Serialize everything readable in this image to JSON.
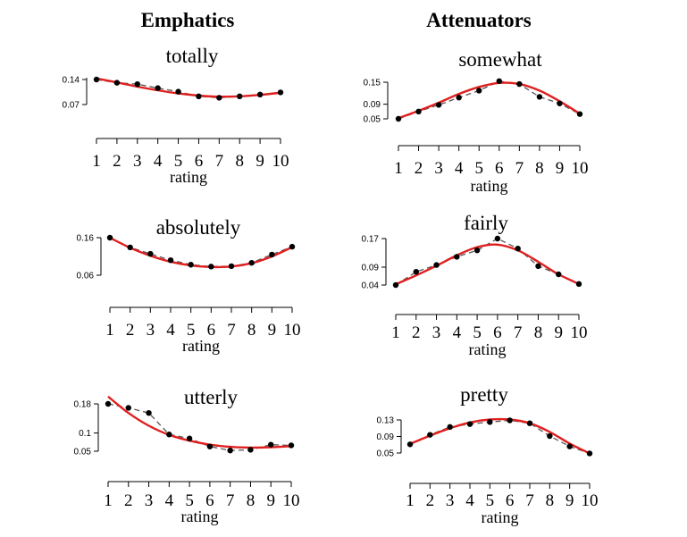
{
  "columns": [
    "Emphatics",
    "Attenuators"
  ],
  "chart_data": [
    {
      "type": "line",
      "title": "totally",
      "xlabel": "rating",
      "x": [
        1,
        2,
        3,
        4,
        5,
        6,
        7,
        8,
        9,
        10
      ],
      "yticks": [
        0.14,
        0.07
      ],
      "ylim": [
        0.07,
        0.145
      ],
      "series": [
        {
          "observed": [
            0.14,
            0.131,
            0.127,
            0.116,
            0.106,
            0.093,
            0.089,
            0.093,
            0.098,
            0.104
          ],
          "fitted": [
            0.143,
            0.132,
            0.12,
            0.11,
            0.101,
            0.095,
            0.092,
            0.093,
            0.097,
            0.103
          ]
        }
      ],
      "style": {
        "observed_color": "#555555",
        "fitted_color": "#e01f1f",
        "marker_color": "#000000"
      }
    },
    {
      "type": "line",
      "title": "absolutely",
      "xlabel": "rating",
      "x": [
        1,
        2,
        3,
        4,
        5,
        6,
        7,
        8,
        9,
        10
      ],
      "yticks": [
        0.16,
        0.06
      ],
      "ylim": [
        0.06,
        0.16
      ],
      "series": [
        {
          "observed": [
            0.16,
            0.134,
            0.117,
            0.1,
            0.088,
            0.083,
            0.084,
            0.093,
            0.115,
            0.136
          ],
          "fitted": [
            0.16,
            0.133,
            0.112,
            0.096,
            0.086,
            0.082,
            0.083,
            0.092,
            0.11,
            0.135
          ]
        }
      ],
      "style": {
        "observed_color": "#555555",
        "fitted_color": "#e01f1f",
        "marker_color": "#000000"
      }
    },
    {
      "type": "line",
      "title": "utterly",
      "xlabel": "rating",
      "x": [
        1,
        2,
        3,
        4,
        5,
        6,
        7,
        8,
        9,
        10
      ],
      "yticks": [
        0.18,
        0.1,
        0.05
      ],
      "ylim": [
        0.05,
        0.18
      ],
      "series": [
        {
          "observed": [
            0.18,
            0.169,
            0.155,
            0.096,
            0.085,
            0.063,
            0.052,
            0.054,
            0.068,
            0.066
          ],
          "fitted": [
            0.2,
            0.155,
            0.12,
            0.095,
            0.079,
            0.068,
            0.062,
            0.06,
            0.061,
            0.064
          ]
        }
      ],
      "style": {
        "observed_color": "#555555",
        "fitted_color": "#e01f1f",
        "marker_color": "#000000"
      }
    },
    {
      "type": "line",
      "title": "somewhat",
      "xlabel": "rating",
      "x": [
        1,
        2,
        3,
        4,
        5,
        6,
        7,
        8,
        9,
        10
      ],
      "yticks": [
        0.15,
        0.09,
        0.05
      ],
      "ylim": [
        0.05,
        0.15
      ],
      "series": [
        {
          "observed": [
            0.05,
            0.07,
            0.088,
            0.108,
            0.127,
            0.153,
            0.145,
            0.11,
            0.092,
            0.063
          ],
          "fitted": [
            0.052,
            0.072,
            0.094,
            0.118,
            0.137,
            0.148,
            0.145,
            0.127,
            0.098,
            0.064
          ]
        }
      ],
      "style": {
        "observed_color": "#555555",
        "fitted_color": "#e01f1f",
        "marker_color": "#000000"
      }
    },
    {
      "type": "line",
      "title": "fairly",
      "xlabel": "rating",
      "x": [
        1,
        2,
        3,
        4,
        5,
        6,
        7,
        8,
        9,
        10
      ],
      "yticks": [
        0.17,
        0.09,
        0.04
      ],
      "ylim": [
        0.04,
        0.17
      ],
      "series": [
        {
          "observed": [
            0.04,
            0.077,
            0.096,
            0.119,
            0.137,
            0.17,
            0.142,
            0.093,
            0.07,
            0.043
          ],
          "fitted": [
            0.042,
            0.067,
            0.094,
            0.123,
            0.146,
            0.153,
            0.137,
            0.105,
            0.07,
            0.043
          ]
        }
      ],
      "style": {
        "observed_color": "#555555",
        "fitted_color": "#e01f1f",
        "marker_color": "#000000"
      }
    },
    {
      "type": "line",
      "title": "pretty",
      "xlabel": "rating",
      "x": [
        1,
        2,
        3,
        4,
        5,
        6,
        7,
        8,
        9,
        10
      ],
      "yticks": [
        0.13,
        0.09,
        0.05
      ],
      "ylim": [
        0.05,
        0.13
      ],
      "series": [
        {
          "observed": [
            0.071,
            0.094,
            0.113,
            0.12,
            0.125,
            0.129,
            0.122,
            0.091,
            0.066,
            0.049
          ],
          "fitted": [
            0.072,
            0.092,
            0.11,
            0.124,
            0.131,
            0.131,
            0.122,
            0.101,
            0.073,
            0.049
          ]
        }
      ],
      "style": {
        "observed_color": "#555555",
        "fitted_color": "#e01f1f",
        "marker_color": "#000000"
      }
    }
  ]
}
